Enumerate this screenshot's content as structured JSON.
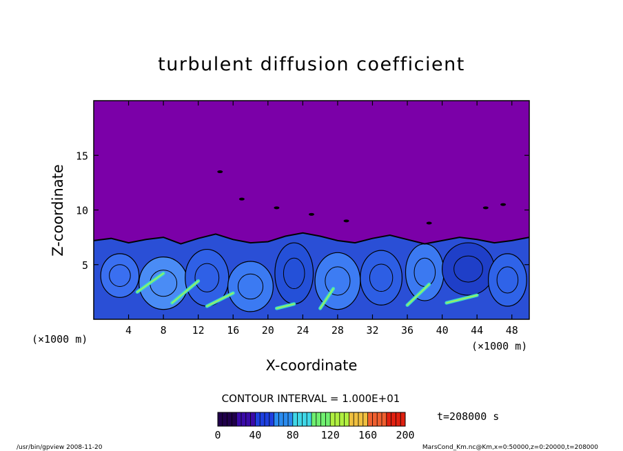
{
  "chart_data": {
    "type": "heatmap",
    "title": "turbulent diffusion coefficient",
    "xlabel": "X-coordinate",
    "ylabel": "Z-coordinate",
    "x_unit": "(×1000 m)",
    "y_unit": "(×1000 m)",
    "xlim": [
      0,
      50
    ],
    "ylim": [
      0,
      20
    ],
    "x_ticks": [
      4,
      8,
      12,
      16,
      20,
      24,
      28,
      32,
      36,
      40,
      44,
      48
    ],
    "y_ticks": [
      5,
      10,
      15
    ],
    "contour_interval_text": "CONTOUR INTERVAL = 1.000E+01",
    "time_label": "t=208000 s",
    "colorbar": {
      "min": 0,
      "max": 200,
      "ticks": [
        0,
        40,
        80,
        120,
        160,
        200
      ],
      "colors": [
        "#20004a",
        "#3a0aa8",
        "#1e40e0",
        "#2a8cf0",
        "#40d8e8",
        "#70f070",
        "#b0f040",
        "#f0c040",
        "#f06030",
        "#e02010"
      ]
    },
    "background_color": "#7b00a8",
    "boundary_layer_top_km": [
      7.2,
      7.4,
      7.0,
      7.3,
      7.5,
      6.9,
      7.4,
      7.8,
      7.3,
      7.0,
      7.1,
      7.6,
      7.9,
      7.6,
      7.2,
      7.0,
      7.4,
      7.7,
      7.3,
      6.9,
      7.2,
      7.5,
      7.3,
      7.0,
      7.2,
      7.5
    ],
    "footer_left": "/usr/bin/gpview  2008-11-20",
    "footer_right": "MarsCond_Km.nc@Km,x=0:50000,z=0:20000,t=208000"
  }
}
